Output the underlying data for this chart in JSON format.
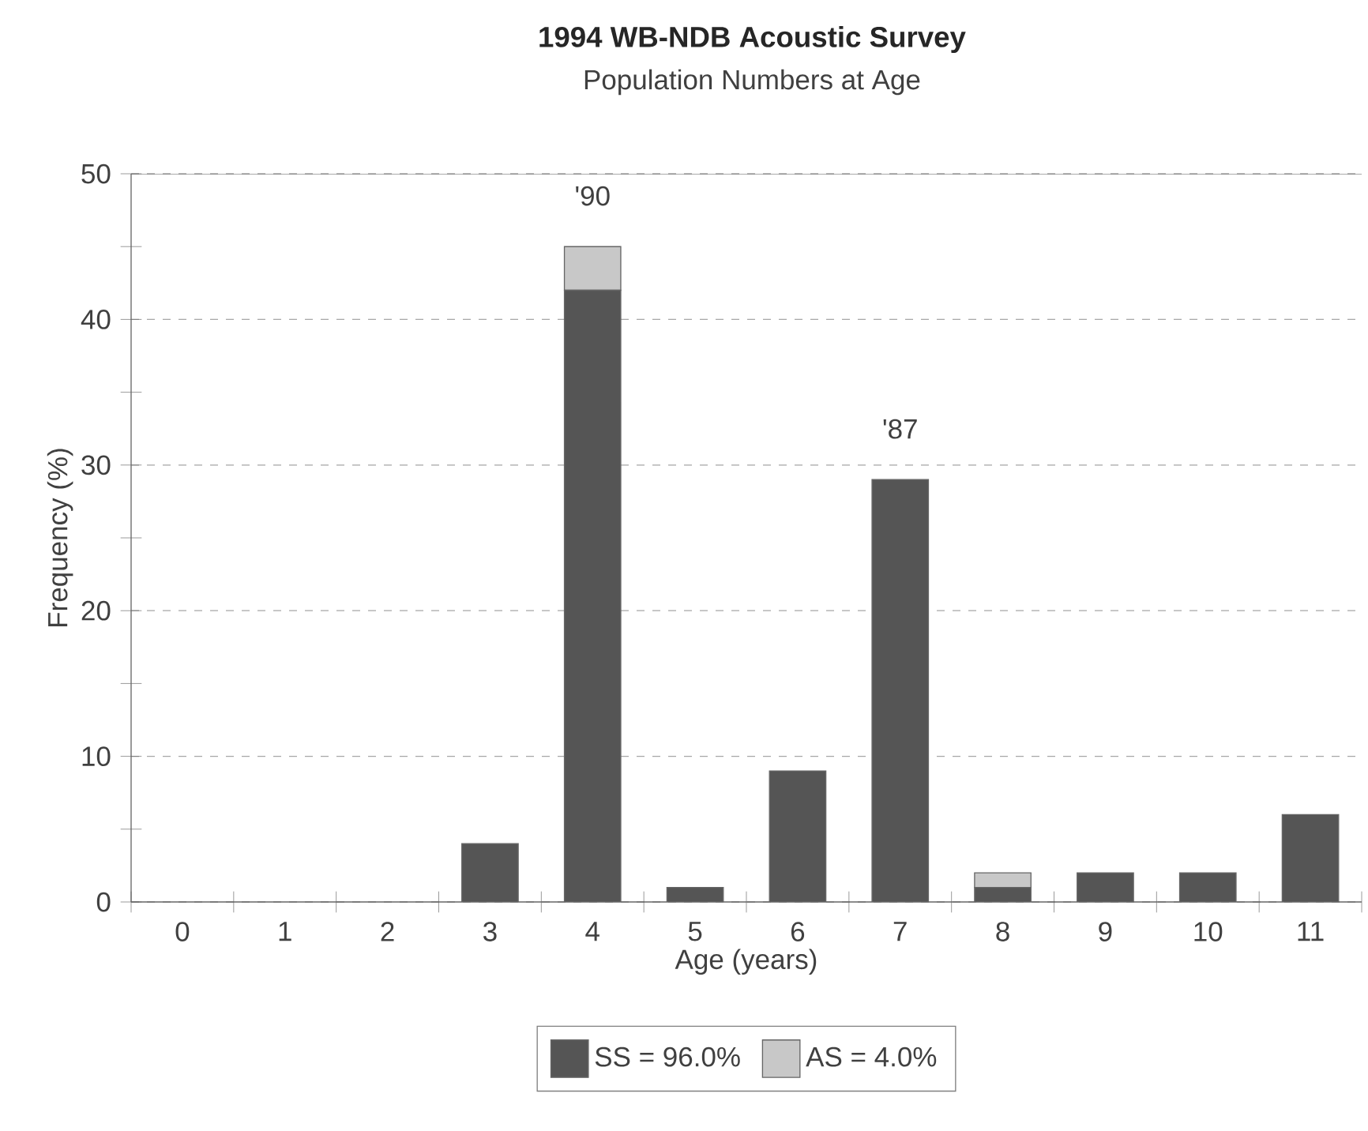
{
  "chart_data": {
    "type": "bar",
    "title": "1994 WB-NDB Acoustic Survey",
    "subtitle": "Population Numbers at Age",
    "xlabel": "Age (years)",
    "ylabel": "Frequency (%)",
    "categories": [
      "0",
      "1",
      "2",
      "3",
      "4",
      "5",
      "6",
      "7",
      "8",
      "9",
      "10",
      "11"
    ],
    "series": [
      {
        "name": "SS = 96.0%",
        "color": "#555555",
        "values": [
          0,
          0,
          0,
          4,
          42,
          1,
          9,
          29,
          1,
          2,
          2,
          6
        ]
      },
      {
        "name": "AS = 4.0%",
        "color": "#c8c8c8",
        "values": [
          0,
          0,
          0,
          0,
          3,
          0,
          0,
          0,
          1,
          0,
          0,
          0
        ]
      }
    ],
    "stacked": true,
    "ylim": [
      0,
      50
    ],
    "yticks": [
      0,
      10,
      20,
      30,
      40,
      50
    ],
    "grid": "y",
    "legend": "bottom",
    "annotations": [
      {
        "text": "'90",
        "x": "4",
        "y": 45
      },
      {
        "text": "'87",
        "x": "7",
        "y": 29
      }
    ]
  }
}
